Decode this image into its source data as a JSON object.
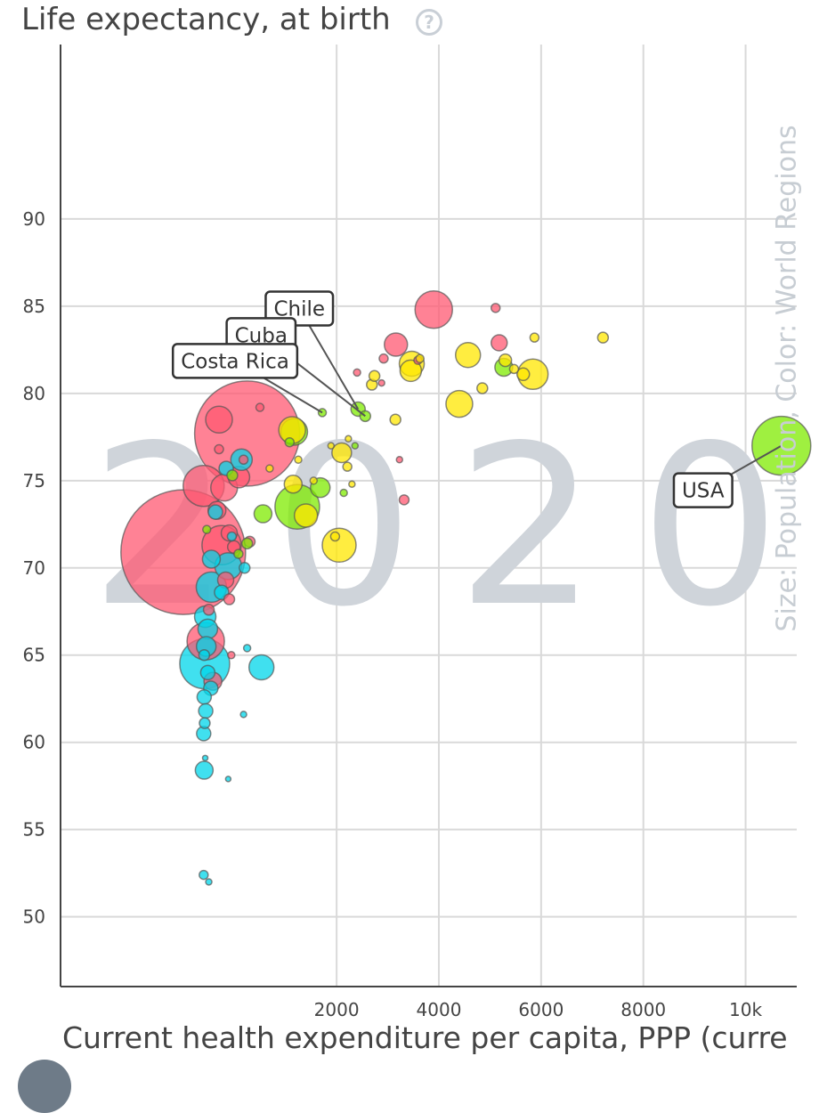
{
  "chart_data": {
    "type": "scatter",
    "title": "Life expectancy, at birth",
    "xlabel": "Current health expenditure per capita, PPP (curre",
    "ylabel": "Life expectancy, at birth",
    "size_label": "Size: Population, Color: World Regions",
    "year_label": "2020",
    "xlim": [
      -3400,
      11000
    ],
    "ylim": [
      46,
      100
    ],
    "x_ticks": [
      {
        "value": 2000,
        "label": "2000"
      },
      {
        "value": 4000,
        "label": "4000"
      },
      {
        "value": 6000,
        "label": "6000"
      },
      {
        "value": 8000,
        "label": "8000"
      },
      {
        "value": 10000,
        "label": "10k"
      }
    ],
    "y_ticks": [
      {
        "value": 50,
        "label": "50"
      },
      {
        "value": 55,
        "label": "55"
      },
      {
        "value": 60,
        "label": "60"
      },
      {
        "value": 65,
        "label": "65"
      },
      {
        "value": 70,
        "label": "70"
      },
      {
        "value": 75,
        "label": "75"
      },
      {
        "value": 80,
        "label": "80"
      },
      {
        "value": 85,
        "label": "85"
      },
      {
        "value": 90,
        "label": "90"
      }
    ],
    "grid": true,
    "region_colors": {
      "asia": "#ff5872",
      "africa": "#00d5e9",
      "americas": "#7feb00",
      "europe": "#ffe700"
    },
    "labeled_points": [
      {
        "name": "USA",
        "x": 10700,
        "y": 77.0,
        "size": 66,
        "region": "americas"
      },
      {
        "name": "Chile",
        "x": 2420,
        "y": 79.1,
        "size": 16,
        "region": "americas"
      },
      {
        "name": "Cuba",
        "x": 2560,
        "y": 78.7,
        "size": 12,
        "region": "americas"
      },
      {
        "name": "Costa Rica",
        "x": 1720,
        "y": 78.9,
        "size": 9,
        "region": "americas"
      }
    ],
    "points": [
      {
        "x": -1000,
        "y": 70.9,
        "size": 140,
        "region": "asia"
      },
      {
        "x": 250,
        "y": 77.7,
        "size": 118,
        "region": "asia"
      },
      {
        "x": -600,
        "y": 74.7,
        "size": 46,
        "region": "asia"
      },
      {
        "x": 3900,
        "y": 84.8,
        "size": 42,
        "region": "asia"
      },
      {
        "x": 3160,
        "y": 82.8,
        "size": 26,
        "region": "asia"
      },
      {
        "x": 5180,
        "y": 82.9,
        "size": 18,
        "region": "asia"
      },
      {
        "x": 5110,
        "y": 84.9,
        "size": 10,
        "region": "asia"
      },
      {
        "x": 2920,
        "y": 82.0,
        "size": 10,
        "region": "asia"
      },
      {
        "x": 3590,
        "y": 81.9,
        "size": 9,
        "region": "asia"
      },
      {
        "x": 2400,
        "y": 81.2,
        "size": 8,
        "region": "asia"
      },
      {
        "x": 3320,
        "y": 73.9,
        "size": 11,
        "region": "asia"
      },
      {
        "x": 3230,
        "y": 76.2,
        "size": 7,
        "region": "asia"
      },
      {
        "x": 2880,
        "y": 80.6,
        "size": 7,
        "region": "asia"
      },
      {
        "x": -300,
        "y": 78.5,
        "size": 30,
        "region": "asia"
      },
      {
        "x": -250,
        "y": 71.3,
        "size": 44,
        "region": "asia"
      },
      {
        "x": -560,
        "y": 65.8,
        "size": 42,
        "region": "asia"
      },
      {
        "x": -200,
        "y": 74.6,
        "size": 30,
        "region": "asia"
      },
      {
        "x": 90,
        "y": 75.2,
        "size": 24,
        "region": "asia"
      },
      {
        "x": -340,
        "y": 73.3,
        "size": 20,
        "region": "asia"
      },
      {
        "x": -100,
        "y": 72.0,
        "size": 18,
        "region": "asia"
      },
      {
        "x": -170,
        "y": 69.3,
        "size": 18,
        "region": "asia"
      },
      {
        "x": -420,
        "y": 63.5,
        "size": 20,
        "region": "asia"
      },
      {
        "x": -10,
        "y": 71.2,
        "size": 14,
        "region": "asia"
      },
      {
        "x": -500,
        "y": 67.6,
        "size": 12,
        "region": "asia"
      },
      {
        "x": -100,
        "y": 68.2,
        "size": 12,
        "region": "asia"
      },
      {
        "x": -300,
        "y": 76.8,
        "size": 10,
        "region": "asia"
      },
      {
        "x": 180,
        "y": 76.2,
        "size": 10,
        "region": "asia"
      },
      {
        "x": 500,
        "y": 79.2,
        "size": 9,
        "region": "asia"
      },
      {
        "x": -60,
        "y": 65.0,
        "size": 8,
        "region": "asia"
      },
      {
        "x": 300,
        "y": 71.5,
        "size": 12,
        "region": "asia"
      },
      {
        "x": 1170,
        "y": 77.8,
        "size": 30,
        "region": "americas"
      },
      {
        "x": 1230,
        "y": 73.5,
        "size": 50,
        "region": "americas"
      },
      {
        "x": 1680,
        "y": 74.6,
        "size": 22,
        "region": "americas"
      },
      {
        "x": 5270,
        "y": 81.5,
        "size": 20,
        "region": "americas"
      },
      {
        "x": 560,
        "y": 73.1,
        "size": 20,
        "region": "americas"
      },
      {
        "x": 250,
        "y": 71.4,
        "size": 12,
        "region": "americas"
      },
      {
        "x": -40,
        "y": 75.3,
        "size": 12,
        "region": "americas"
      },
      {
        "x": 80,
        "y": 70.8,
        "size": 10,
        "region": "americas"
      },
      {
        "x": 2360,
        "y": 77.0,
        "size": 7,
        "region": "americas"
      },
      {
        "x": 2140,
        "y": 74.3,
        "size": 8,
        "region": "americas"
      },
      {
        "x": 1080,
        "y": 77.2,
        "size": 10,
        "region": "americas"
      },
      {
        "x": -540,
        "y": 72.2,
        "size": 9,
        "region": "americas"
      },
      {
        "x": 2050,
        "y": 71.3,
        "size": 38,
        "region": "europe"
      },
      {
        "x": 3470,
        "y": 81.7,
        "size": 28,
        "region": "europe"
      },
      {
        "x": 4400,
        "y": 79.4,
        "size": 30,
        "region": "europe"
      },
      {
        "x": 5840,
        "y": 81.1,
        "size": 34,
        "region": "europe"
      },
      {
        "x": 4570,
        "y": 82.2,
        "size": 28,
        "region": "europe"
      },
      {
        "x": 3450,
        "y": 81.3,
        "size": 24,
        "region": "europe"
      },
      {
        "x": 1130,
        "y": 77.9,
        "size": 30,
        "region": "europe"
      },
      {
        "x": 2100,
        "y": 76.6,
        "size": 22,
        "region": "europe"
      },
      {
        "x": 1400,
        "y": 73.0,
        "size": 26,
        "region": "europe"
      },
      {
        "x": 1150,
        "y": 74.8,
        "size": 20,
        "region": "europe"
      },
      {
        "x": 5300,
        "y": 81.9,
        "size": 14,
        "region": "europe"
      },
      {
        "x": 4850,
        "y": 80.3,
        "size": 12,
        "region": "europe"
      },
      {
        "x": 5650,
        "y": 81.1,
        "size": 14,
        "region": "europe"
      },
      {
        "x": 7210,
        "y": 83.2,
        "size": 12,
        "region": "europe"
      },
      {
        "x": 5870,
        "y": 83.2,
        "size": 10,
        "region": "europe"
      },
      {
        "x": 5470,
        "y": 81.4,
        "size": 10,
        "region": "europe"
      },
      {
        "x": 2690,
        "y": 80.5,
        "size": 12,
        "region": "europe"
      },
      {
        "x": 3150,
        "y": 78.5,
        "size": 12,
        "region": "europe"
      },
      {
        "x": 2740,
        "y": 81.0,
        "size": 12,
        "region": "europe"
      },
      {
        "x": 3630,
        "y": 82.0,
        "size": 9,
        "region": "europe"
      },
      {
        "x": 2210,
        "y": 75.8,
        "size": 10,
        "region": "europe"
      },
      {
        "x": 1970,
        "y": 71.8,
        "size": 10,
        "region": "europe"
      },
      {
        "x": 2230,
        "y": 77.4,
        "size": 7,
        "region": "europe"
      },
      {
        "x": 1890,
        "y": 77.0,
        "size": 7,
        "region": "europe"
      },
      {
        "x": 2300,
        "y": 74.8,
        "size": 7,
        "region": "europe"
      },
      {
        "x": 1550,
        "y": 75.0,
        "size": 8,
        "region": "europe"
      },
      {
        "x": 1250,
        "y": 76.2,
        "size": 8,
        "region": "europe"
      },
      {
        "x": 690,
        "y": 75.7,
        "size": 8,
        "region": "europe"
      },
      {
        "x": -580,
        "y": 64.5,
        "size": 56,
        "region": "africa"
      },
      {
        "x": -450,
        "y": 68.9,
        "size": 34,
        "region": "africa"
      },
      {
        "x": -120,
        "y": 70.1,
        "size": 30,
        "region": "africa"
      },
      {
        "x": 530,
        "y": 64.3,
        "size": 28,
        "region": "africa"
      },
      {
        "x": 140,
        "y": 76.2,
        "size": 24,
        "region": "africa"
      },
      {
        "x": -570,
        "y": 67.2,
        "size": 24,
        "region": "africa"
      },
      {
        "x": -520,
        "y": 66.5,
        "size": 22,
        "region": "africa"
      },
      {
        "x": -550,
        "y": 65.5,
        "size": 22,
        "region": "africa"
      },
      {
        "x": -590,
        "y": 58.4,
        "size": 20,
        "region": "africa"
      },
      {
        "x": -450,
        "y": 70.5,
        "size": 20,
        "region": "africa"
      },
      {
        "x": -370,
        "y": 73.2,
        "size": 16,
        "region": "africa"
      },
      {
        "x": -250,
        "y": 68.6,
        "size": 16,
        "region": "africa"
      },
      {
        "x": -520,
        "y": 64.0,
        "size": 16,
        "region": "africa"
      },
      {
        "x": -460,
        "y": 63.1,
        "size": 16,
        "region": "africa"
      },
      {
        "x": -590,
        "y": 62.6,
        "size": 16,
        "region": "africa"
      },
      {
        "x": -560,
        "y": 61.8,
        "size": 16,
        "region": "africa"
      },
      {
        "x": -600,
        "y": 60.5,
        "size": 16,
        "region": "africa"
      },
      {
        "x": -580,
        "y": 61.1,
        "size": 12,
        "region": "africa"
      },
      {
        "x": -160,
        "y": 75.7,
        "size": 16,
        "region": "africa"
      },
      {
        "x": 200,
        "y": 70.0,
        "size": 12,
        "region": "africa"
      },
      {
        "x": -590,
        "y": 65.0,
        "size": 12,
        "region": "africa"
      },
      {
        "x": -600,
        "y": 52.4,
        "size": 10,
        "region": "africa"
      },
      {
        "x": -500,
        "y": 52.0,
        "size": 7,
        "region": "africa"
      },
      {
        "x": 250,
        "y": 65.4,
        "size": 8,
        "region": "africa"
      },
      {
        "x": -120,
        "y": 57.9,
        "size": 6,
        "region": "africa"
      },
      {
        "x": 180,
        "y": 61.6,
        "size": 7,
        "region": "africa"
      },
      {
        "x": -570,
        "y": 59.1,
        "size": 6,
        "region": "africa"
      },
      {
        "x": -50,
        "y": 71.8,
        "size": 10,
        "region": "africa"
      }
    ]
  }
}
